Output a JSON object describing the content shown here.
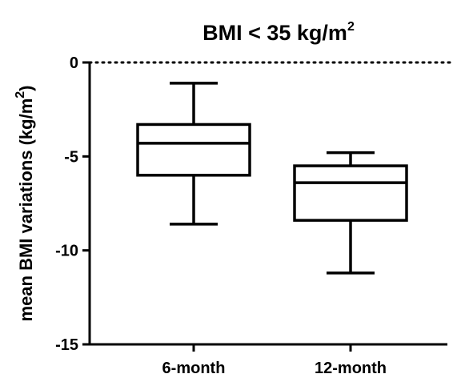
{
  "chart_data": {
    "type": "box",
    "title": {
      "main": "BMI < 35 kg/m",
      "superscript": "2"
    },
    "ylabel": {
      "main": "mean BMI variations (kg/m",
      "superscript": "2",
      "suffix": ")"
    },
    "xlabel": "",
    "ylim": [
      -15,
      0
    ],
    "yticks": [
      0,
      -5,
      -10,
      -15
    ],
    "reference_line": {
      "y": 0,
      "style": "dotted"
    },
    "categories": [
      "6-month",
      "12-month"
    ],
    "boxes": [
      {
        "label": "6-month",
        "min": -8.6,
        "q1": -6.0,
        "median": -4.3,
        "q3": -3.3,
        "max": -1.1
      },
      {
        "label": "12-month",
        "min": -11.2,
        "q1": -8.4,
        "median": -6.4,
        "q3": -5.5,
        "max": -4.8
      }
    ]
  }
}
